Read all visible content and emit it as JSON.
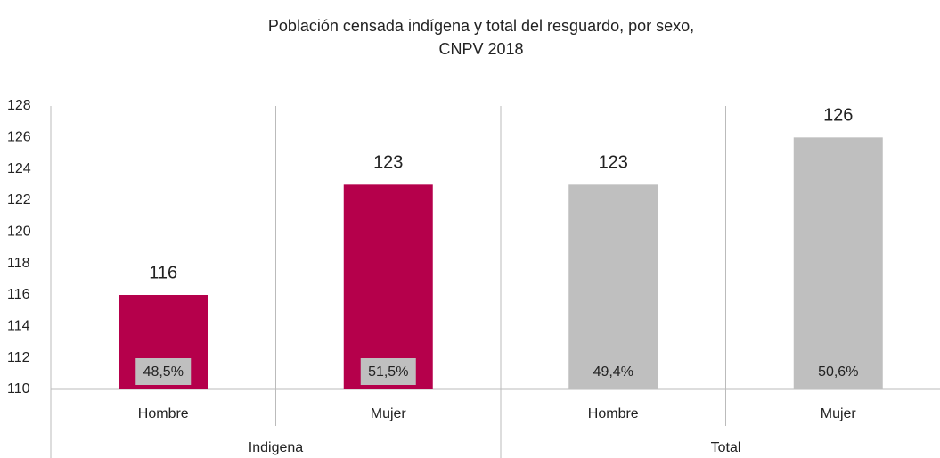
{
  "chart_data": {
    "type": "bar",
    "title": [
      "Población censada indígena y total del resguardo, por sexo,",
      "CNPV 2018"
    ],
    "categories": [
      "Hombre",
      "Mujer",
      "Hombre",
      "Mujer"
    ],
    "groups": [
      {
        "name": "Indigena",
        "size": 2
      },
      {
        "name": "Total",
        "size": 2
      }
    ],
    "values": [
      116,
      123,
      123,
      126
    ],
    "colors": [
      "#b5004b",
      "#b5004b",
      "#bfbfbf",
      "#bfbfbf"
    ],
    "inner_labels": [
      "48,5%",
      "51,5%",
      "49,4%",
      "50,6%"
    ],
    "ylim": [
      110,
      128
    ],
    "yticks": [
      110,
      112,
      114,
      116,
      118,
      120,
      122,
      124,
      126,
      128
    ],
    "grid": false
  }
}
